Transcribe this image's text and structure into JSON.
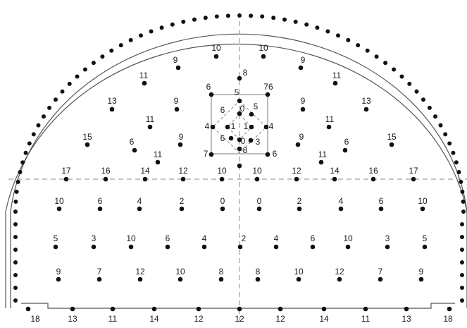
{
  "diagram": {
    "contour_dots": true,
    "groups": {
      "center": [
        {
          "id": "p8",
          "label": "8"
        },
        {
          "id": "p5",
          "label": "5"
        },
        {
          "id": "p6a",
          "label": "6"
        },
        {
          "id": "p76",
          "label": "76"
        },
        {
          "id": "p6b",
          "label": "6"
        },
        {
          "id": "p0a",
          "label": "0"
        },
        {
          "id": "p5b",
          "label": "5"
        },
        {
          "id": "p4a",
          "label": "4"
        },
        {
          "id": "p1a",
          "label": "1"
        },
        {
          "id": "p1b",
          "label": "1"
        },
        {
          "id": "p4b",
          "label": "4"
        },
        {
          "id": "p6c",
          "label": "6"
        },
        {
          "id": "p0b",
          "label": "0"
        },
        {
          "id": "p3",
          "label": "3"
        },
        {
          "id": "p8b",
          "label": "8"
        },
        {
          "id": "p7",
          "label": "7"
        },
        {
          "id": "p6d",
          "label": "6"
        },
        {
          "id": "pdot",
          "label": ""
        }
      ],
      "upper": [
        {
          "id": "u1",
          "label": "10"
        },
        {
          "id": "u2",
          "label": "10"
        },
        {
          "id": "u3",
          "label": "9"
        },
        {
          "id": "u4",
          "label": "9"
        },
        {
          "id": "u5",
          "label": "11"
        },
        {
          "id": "u6",
          "label": "11"
        },
        {
          "id": "u7",
          "label": "13"
        },
        {
          "id": "u8",
          "label": "9"
        },
        {
          "id": "u9",
          "label": "9"
        },
        {
          "id": "u10",
          "label": "13"
        },
        {
          "id": "u11",
          "label": "11"
        },
        {
          "id": "u12",
          "label": "11"
        },
        {
          "id": "u13",
          "label": "15"
        },
        {
          "id": "u14",
          "label": "6"
        },
        {
          "id": "u15",
          "label": "9"
        },
        {
          "id": "u16",
          "label": "9"
        },
        {
          "id": "u17",
          "label": "6"
        },
        {
          "id": "u18",
          "label": "15"
        },
        {
          "id": "u19",
          "label": "11"
        },
        {
          "id": "u20",
          "label": "11"
        }
      ],
      "row1": [
        "17",
        "16",
        "14",
        "12",
        "10",
        "10",
        "12",
        "14",
        "16",
        "17"
      ],
      "row2": [
        "10",
        "6",
        "4",
        "2",
        "0",
        "0",
        "2",
        "4",
        "6",
        "10"
      ],
      "row3": [
        "5",
        "3",
        "10",
        "6",
        "4",
        "2",
        "4",
        "6",
        "10",
        "3",
        "5"
      ],
      "row4": [
        "9",
        "7",
        "12",
        "10",
        "8",
        "8",
        "10",
        "12",
        "7",
        "9"
      ],
      "floor": [
        "18",
        "13",
        "11",
        "14",
        "12",
        "12",
        "12",
        "14",
        "11",
        "13",
        "18"
      ]
    }
  }
}
